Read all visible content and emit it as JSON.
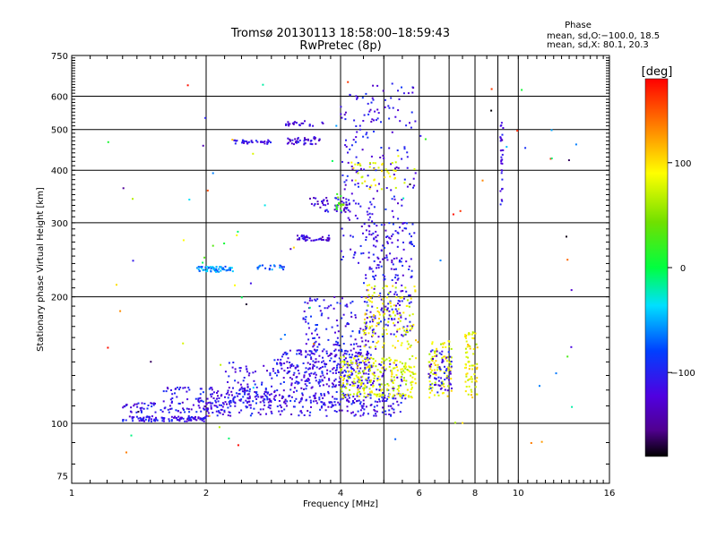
{
  "chart_data": {
    "type": "scatter",
    "title": "Tromsø 20130113 18:58:00–18:59:43",
    "subtitle": "RwPretec (8p)",
    "xlabel": "Frequency [MHz]",
    "ylabel": "Stationary phase Virtual Height [km]",
    "x_scale": "log",
    "y_scale": "log",
    "xlim": [
      1,
      16
    ],
    "ylim": [
      72,
      750
    ],
    "x_ticks": [
      1,
      2,
      4,
      6,
      8,
      10,
      16
    ],
    "x_tick_labels": [
      "1",
      "2",
      "4",
      "6",
      "8",
      "10",
      "16"
    ],
    "x_grid_extra": [
      5,
      7,
      9
    ],
    "y_ticks": [
      75,
      100,
      200,
      300,
      400,
      500,
      600,
      750
    ],
    "y_tick_labels": [
      "75",
      "100",
      "200",
      "300",
      "400",
      "500",
      "600",
      "750"
    ],
    "y_grid": [
      100,
      200,
      300,
      400,
      500,
      600
    ],
    "grid": true,
    "phase_box": {
      "heading": "Phase",
      "line1": "mean, sd,O:−100.0, 18.5",
      "line2": "mean, sd,X:  80.1, 20.3"
    },
    "colorbar": {
      "label": "[deg]",
      "range": [
        -180,
        180
      ],
      "tick_values": [
        100,
        0,
        -100
      ],
      "tick_labels": [
        "100",
        "0",
        "−100"
      ]
    },
    "point_groups": [
      {
        "x_range": [
          1.3,
          2.0
        ],
        "y_range": [
          101,
          104
        ],
        "count": 110,
        "phase": -110
      },
      {
        "x_range": [
          2.0,
          5.6
        ],
        "y_range": [
          104,
          118
        ],
        "count": 260,
        "phase": -110
      },
      {
        "x_range": [
          1.3,
          2.2
        ],
        "y_range": [
          106,
          112
        ],
        "count": 80,
        "phase": -110
      },
      {
        "x_range": [
          2.2,
          5.5
        ],
        "y_range": [
          112,
          140
        ],
        "count": 260,
        "phase": -110
      },
      {
        "x_range": [
          1.6,
          2.8
        ],
        "y_range": [
          112,
          122
        ],
        "count": 90,
        "phase": -110
      },
      {
        "x_range": [
          2.8,
          4.7
        ],
        "y_range": [
          122,
          150
        ],
        "count": 200,
        "phase": -110
      },
      {
        "x_range": [
          3.3,
          4.8
        ],
        "y_range": [
          140,
          200
        ],
        "count": 150,
        "phase": -110
      },
      {
        "x_range": [
          4.5,
          5.8
        ],
        "y_range": [
          160,
          300
        ],
        "count": 180,
        "phase": -110
      },
      {
        "x_range": [
          4.0,
          5.9
        ],
        "y_range": [
          115,
          145
        ],
        "count": 240,
        "phase": 80
      },
      {
        "x_range": [
          4.5,
          5.9
        ],
        "y_range": [
          150,
          215
        ],
        "count": 120,
        "phase": 85
      },
      {
        "x_range": [
          6.3,
          7.1
        ],
        "y_range": [
          115,
          160
        ],
        "count": 90,
        "phase": 85
      },
      {
        "x_range": [
          7.6,
          8.1
        ],
        "y_range": [
          115,
          165
        ],
        "count": 70,
        "phase": 90
      },
      {
        "x_range": [
          6.3,
          7.1
        ],
        "y_range": [
          118,
          150
        ],
        "count": 60,
        "phase": -110
      },
      {
        "x_range": [
          1.9,
          2.3
        ],
        "y_range": [
          229,
          236
        ],
        "count": 60,
        "phase": -60
      },
      {
        "x_range": [
          2.6,
          3.0
        ],
        "y_range": [
          232,
          238
        ],
        "count": 20,
        "phase": -70
      },
      {
        "x_range": [
          3.2,
          3.8
        ],
        "y_range": [
          272,
          280
        ],
        "count": 45,
        "phase": -120
      },
      {
        "x_range": [
          3.4,
          4.2
        ],
        "y_range": [
          318,
          345
        ],
        "count": 50,
        "phase": -120
      },
      {
        "x_range": [
          3.9,
          4.1
        ],
        "y_range": [
          320,
          355
        ],
        "count": 15,
        "phase": 30
      },
      {
        "x_range": [
          2.3,
          2.8
        ],
        "y_range": [
          462,
          472
        ],
        "count": 35,
        "phase": -115
      },
      {
        "x_range": [
          3.0,
          3.6
        ],
        "y_range": [
          460,
          480
        ],
        "count": 40,
        "phase": -120
      },
      {
        "x_range": [
          3.0,
          3.7
        ],
        "y_range": [
          510,
          525
        ],
        "count": 25,
        "phase": -120
      },
      {
        "x_range": [
          4.0,
          5.9
        ],
        "y_range": [
          240,
          650
        ],
        "count": 220,
        "phase": -110
      },
      {
        "x_range": [
          4.2,
          5.6
        ],
        "y_range": [
          360,
          420
        ],
        "count": 40,
        "phase": 85
      },
      {
        "x_range": [
          9.1,
          9.25
        ],
        "y_range": [
          330,
          520
        ],
        "count": 30,
        "phase": -120
      },
      {
        "x_range": [
          1.2,
          13.5
        ],
        "y_range": [
          80,
          680
        ],
        "count": 90,
        "phase": 0
      }
    ]
  }
}
